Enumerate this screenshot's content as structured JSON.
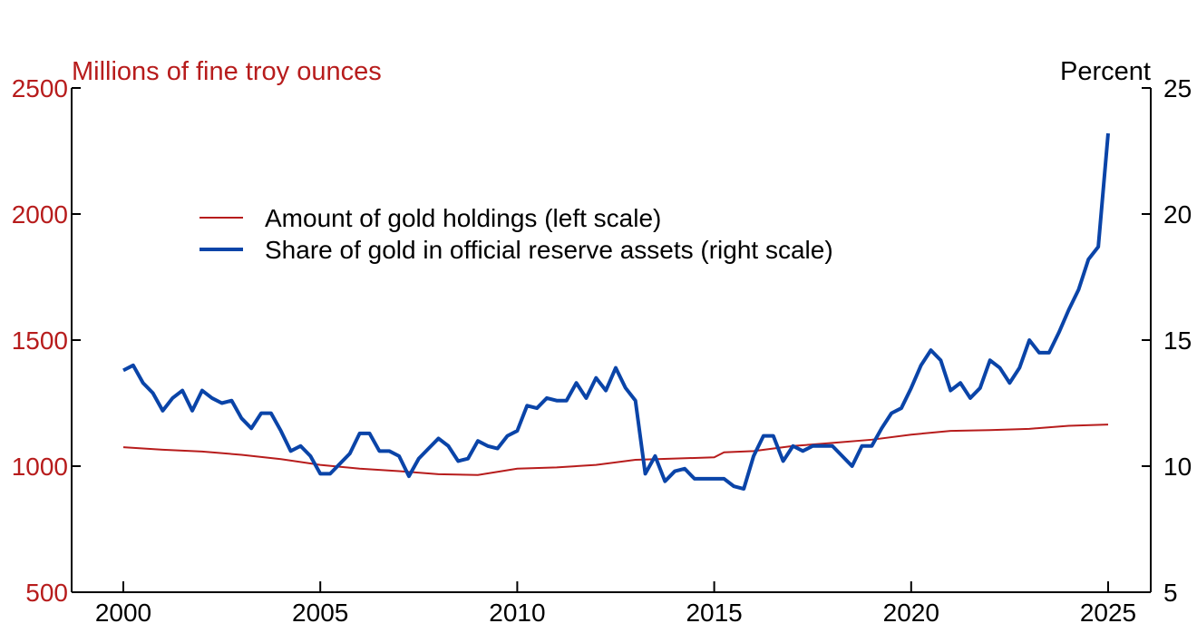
{
  "chart_data": {
    "type": "line",
    "left_axis": {
      "label": "Millions of fine troy ounces",
      "ylim": [
        500,
        2500
      ],
      "ticks": [
        "500",
        "1000",
        "1500",
        "2000",
        "2500"
      ],
      "color": "#b71c1c"
    },
    "right_axis": {
      "label": "Percent",
      "ylim": [
        5,
        25
      ],
      "ticks": [
        "5",
        "10",
        "15",
        "20",
        "25"
      ],
      "color": "#000000"
    },
    "x_axis": {
      "ticks": [
        "2000",
        "2005",
        "2010",
        "2015",
        "2020",
        "2025"
      ],
      "xlim": [
        1998.7,
        2026.1
      ]
    },
    "grid": false,
    "legend": {
      "placement": "upper-left"
    },
    "series": [
      {
        "name": "Amount of gold holdings (left scale)",
        "axis": "left",
        "color": "#b71c1c",
        "x": [
          2000,
          2001,
          2002,
          2003,
          2004,
          2005,
          2006,
          2007,
          2008,
          2009,
          2010,
          2011,
          2012,
          2013,
          2014,
          2015,
          2015.25,
          2016,
          2017,
          2018,
          2019,
          2020,
          2021,
          2022,
          2023,
          2024,
          2025
        ],
        "values": [
          1075,
          1065,
          1058,
          1045,
          1028,
          1005,
          990,
          980,
          968,
          965,
          990,
          995,
          1005,
          1025,
          1030,
          1035,
          1055,
          1060,
          1080,
          1092,
          1105,
          1125,
          1140,
          1143,
          1148,
          1160,
          1165
        ]
      },
      {
        "name": "Share of gold in official reserve assets (right scale)",
        "axis": "right",
        "color": "#0a44a8",
        "x_start": 2000,
        "x_step": 0.25,
        "values": [
          13.8,
          14.0,
          13.3,
          12.9,
          12.2,
          12.7,
          13.0,
          12.2,
          13.0,
          12.7,
          12.5,
          12.6,
          11.9,
          11.5,
          12.1,
          12.1,
          11.4,
          10.6,
          10.8,
          10.4,
          9.7,
          9.7,
          10.1,
          10.5,
          11.3,
          11.3,
          10.6,
          10.6,
          10.4,
          9.6,
          10.3,
          10.7,
          11.1,
          10.8,
          10.2,
          10.3,
          11.0,
          10.8,
          10.7,
          11.2,
          11.4,
          12.4,
          12.3,
          12.7,
          12.6,
          12.6,
          13.3,
          12.7,
          13.5,
          13.0,
          13.9,
          13.1,
          12.6,
          9.7,
          10.4,
          9.4,
          9.8,
          9.9,
          9.5,
          9.5,
          9.5,
          9.5,
          9.2,
          9.1,
          10.4,
          11.2,
          11.2,
          10.2,
          10.8,
          10.6,
          10.8,
          10.8,
          10.8,
          10.4,
          10.0,
          10.8,
          10.8,
          11.5,
          12.1,
          12.3,
          13.1,
          14.0,
          14.6,
          14.2,
          13.0,
          13.3,
          12.7,
          13.1,
          14.2,
          13.9,
          13.3,
          13.9,
          15.0,
          14.5,
          14.5,
          15.3,
          16.2,
          17.0,
          18.2,
          18.7,
          23.2
        ]
      }
    ]
  }
}
